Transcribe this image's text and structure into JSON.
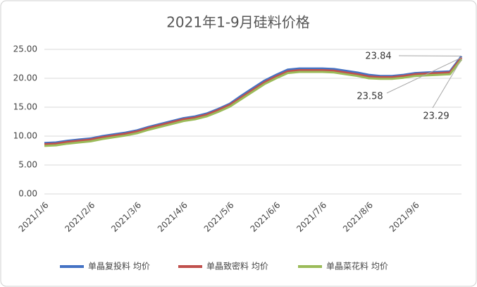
{
  "chart_data": {
    "type": "line",
    "title": "2021年1-9月硅料价格",
    "categories": [
      "2021/1/6",
      null,
      null,
      null,
      "2021/2/6",
      null,
      null,
      null,
      "2021/3/6",
      null,
      null,
      null,
      "2021/4/6",
      null,
      null,
      null,
      "2021/5/6",
      null,
      null,
      null,
      "2021/6/6",
      null,
      null,
      null,
      "2021/7/6",
      null,
      null,
      null,
      "2021/8/6",
      null,
      null,
      null,
      "2021/9/6",
      null,
      null,
      null,
      null
    ],
    "series": [
      {
        "name": "单晶复投料 均价",
        "color": "#4472c4",
        "values": [
          8.8,
          8.9,
          9.2,
          9.4,
          9.6,
          10.0,
          10.3,
          10.6,
          11.0,
          11.6,
          12.1,
          12.6,
          13.1,
          13.4,
          13.9,
          14.7,
          15.6,
          17.0,
          18.3,
          19.6,
          20.6,
          21.5,
          21.7,
          21.7,
          21.7,
          21.6,
          21.3,
          21.0,
          20.6,
          20.4,
          20.4,
          20.6,
          20.9,
          21.0,
          21.1,
          21.2,
          23.84
        ]
      },
      {
        "name": "单晶致密料 均价",
        "color": "#c0504d",
        "values": [
          8.6,
          8.7,
          9.0,
          9.2,
          9.4,
          9.8,
          10.1,
          10.4,
          10.8,
          11.4,
          11.9,
          12.4,
          12.9,
          13.2,
          13.7,
          14.5,
          15.4,
          16.7,
          18.0,
          19.3,
          20.3,
          21.2,
          21.4,
          21.4,
          21.4,
          21.3,
          21.0,
          20.7,
          20.3,
          20.2,
          20.2,
          20.4,
          20.7,
          20.8,
          20.9,
          21.0,
          23.58
        ]
      },
      {
        "name": "单晶菜花料 均价",
        "color": "#9bbb59",
        "values": [
          8.3,
          8.4,
          8.7,
          8.9,
          9.1,
          9.5,
          9.8,
          10.1,
          10.5,
          11.1,
          11.6,
          12.1,
          12.6,
          12.9,
          13.4,
          14.2,
          15.1,
          16.4,
          17.7,
          19.0,
          20.0,
          20.9,
          21.1,
          21.1,
          21.1,
          21.0,
          20.7,
          20.4,
          20.0,
          19.9,
          19.9,
          20.1,
          20.4,
          20.5,
          20.6,
          20.7,
          23.29
        ]
      }
    ],
    "ylim": [
      0,
      25
    ],
    "yticks": [
      {
        "value": 0,
        "label": "0.00"
      },
      {
        "value": 5,
        "label": "5.00"
      },
      {
        "value": 10,
        "label": "10.00"
      },
      {
        "value": 15,
        "label": "15.00"
      },
      {
        "value": 20,
        "label": "20.00"
      },
      {
        "value": 25,
        "label": "25.00"
      }
    ],
    "grid": true,
    "legend": "bottom"
  }
}
